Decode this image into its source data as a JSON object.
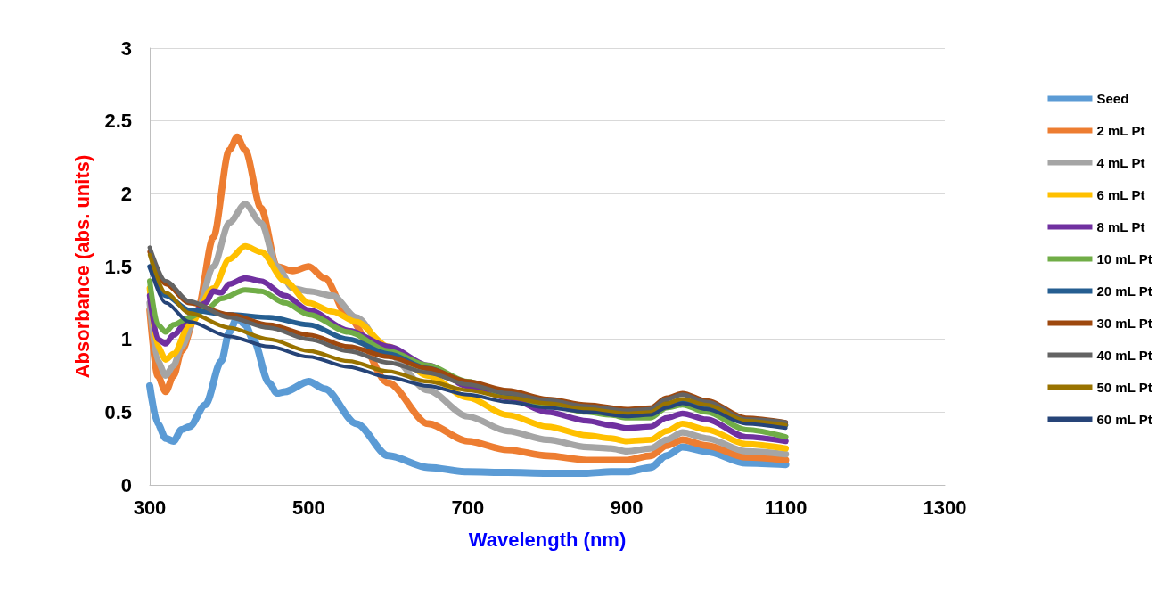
{
  "chart_data": {
    "type": "line",
    "xlabel": "Wavelength (nm)",
    "ylabel": "Absorbance (abs. units)",
    "xlim": [
      300,
      1300
    ],
    "xticks": [
      300,
      500,
      700,
      900,
      1100,
      1300
    ],
    "ylim": [
      0,
      3
    ],
    "yticks": [
      0,
      0.5,
      1,
      1.5,
      2,
      2.5,
      3
    ],
    "grid": "y",
    "legend": "right",
    "marker": "none",
    "line_style": "solid",
    "series": [
      {
        "name": "Seed",
        "color": "#5b9bd5",
        "x": [
          300,
          310,
          320,
          330,
          340,
          350,
          370,
          390,
          400,
          410,
          420,
          430,
          450,
          460,
          470,
          500,
          520,
          560,
          600,
          650,
          700,
          750,
          800,
          850,
          880,
          900,
          930,
          950,
          970,
          1000,
          1050,
          1100
        ],
        "values": [
          0.68,
          0.42,
          0.32,
          0.3,
          0.38,
          0.4,
          0.55,
          0.85,
          1.05,
          1.15,
          1.1,
          1.0,
          0.7,
          0.63,
          0.64,
          0.71,
          0.66,
          0.42,
          0.2,
          0.12,
          0.09,
          0.085,
          0.08,
          0.08,
          0.09,
          0.09,
          0.12,
          0.2,
          0.26,
          0.23,
          0.15,
          0.14
        ]
      },
      {
        "name": "2 mL Pt",
        "color": "#ed7d31",
        "x": [
          300,
          310,
          320,
          330,
          340,
          360,
          380,
          400,
          410,
          420,
          440,
          460,
          480,
          500,
          520,
          550,
          600,
          650,
          700,
          750,
          800,
          850,
          880,
          900,
          930,
          950,
          970,
          1000,
          1050,
          1100
        ],
        "values": [
          1.2,
          0.75,
          0.64,
          0.75,
          0.92,
          1.2,
          1.7,
          2.3,
          2.39,
          2.3,
          1.9,
          1.5,
          1.47,
          1.5,
          1.42,
          1.15,
          0.7,
          0.42,
          0.3,
          0.24,
          0.2,
          0.17,
          0.17,
          0.17,
          0.2,
          0.27,
          0.31,
          0.27,
          0.19,
          0.17
        ]
      },
      {
        "name": "4 mL Pt",
        "color": "#a5a5a5",
        "x": [
          300,
          310,
          320,
          330,
          340,
          360,
          380,
          400,
          420,
          440,
          460,
          480,
          500,
          530,
          560,
          600,
          650,
          700,
          750,
          800,
          850,
          880,
          900,
          930,
          950,
          970,
          1000,
          1050,
          1100
        ],
        "values": [
          1.25,
          0.85,
          0.75,
          0.82,
          0.95,
          1.2,
          1.5,
          1.8,
          1.93,
          1.8,
          1.5,
          1.35,
          1.33,
          1.3,
          1.15,
          0.9,
          0.65,
          0.47,
          0.37,
          0.31,
          0.26,
          0.25,
          0.23,
          0.25,
          0.31,
          0.36,
          0.32,
          0.23,
          0.21
        ]
      },
      {
        "name": "6 mL Pt",
        "color": "#ffc000",
        "x": [
          300,
          310,
          320,
          330,
          350,
          380,
          400,
          420,
          440,
          470,
          500,
          530,
          560,
          600,
          650,
          700,
          750,
          800,
          850,
          880,
          900,
          930,
          950,
          970,
          1000,
          1050,
          1100
        ],
        "values": [
          1.35,
          0.95,
          0.86,
          0.9,
          1.1,
          1.35,
          1.55,
          1.64,
          1.6,
          1.4,
          1.25,
          1.19,
          1.12,
          0.95,
          0.75,
          0.6,
          0.48,
          0.4,
          0.34,
          0.32,
          0.3,
          0.31,
          0.37,
          0.42,
          0.38,
          0.28,
          0.25
        ]
      },
      {
        "name": "8 mL Pt",
        "color": "#7030a0",
        "x": [
          300,
          310,
          320,
          330,
          350,
          370,
          380,
          390,
          400,
          420,
          440,
          470,
          500,
          550,
          600,
          650,
          700,
          750,
          800,
          850,
          880,
          900,
          930,
          950,
          970,
          1000,
          1050,
          1100
        ],
        "values": [
          1.3,
          1.0,
          0.97,
          1.03,
          1.15,
          1.25,
          1.33,
          1.32,
          1.38,
          1.42,
          1.4,
          1.3,
          1.2,
          1.06,
          0.95,
          0.82,
          0.68,
          0.6,
          0.5,
          0.44,
          0.41,
          0.39,
          0.4,
          0.46,
          0.49,
          0.45,
          0.33,
          0.3
        ]
      },
      {
        "name": "10 mL Pt",
        "color": "#70ad47",
        "x": [
          300,
          310,
          320,
          330,
          350,
          370,
          390,
          420,
          440,
          470,
          500,
          550,
          600,
          650,
          700,
          750,
          800,
          850,
          880,
          900,
          930,
          950,
          970,
          1000,
          1050,
          1100
        ],
        "values": [
          1.4,
          1.1,
          1.05,
          1.1,
          1.15,
          1.2,
          1.28,
          1.34,
          1.33,
          1.25,
          1.17,
          1.05,
          0.92,
          0.82,
          0.71,
          0.62,
          0.55,
          0.5,
          0.48,
          0.46,
          0.46,
          0.53,
          0.55,
          0.5,
          0.38,
          0.33
        ]
      },
      {
        "name": "20 mL Pt",
        "color": "#255e91",
        "x": [
          300,
          320,
          350,
          400,
          450,
          500,
          550,
          600,
          650,
          700,
          750,
          800,
          850,
          900,
          930,
          950,
          970,
          1000,
          1050,
          1100
        ],
        "values": [
          1.5,
          1.3,
          1.2,
          1.17,
          1.15,
          1.1,
          1.0,
          0.9,
          0.8,
          0.7,
          0.63,
          0.57,
          0.52,
          0.5,
          0.5,
          0.56,
          0.58,
          0.54,
          0.44,
          0.41
        ]
      },
      {
        "name": "30 mL Pt",
        "color": "#9e480e",
        "x": [
          300,
          320,
          350,
          400,
          450,
          500,
          550,
          600,
          650,
          700,
          750,
          800,
          850,
          900,
          930,
          950,
          970,
          1000,
          1050,
          1100
        ],
        "values": [
          1.6,
          1.38,
          1.25,
          1.17,
          1.1,
          1.03,
          0.95,
          0.88,
          0.8,
          0.71,
          0.65,
          0.59,
          0.55,
          0.52,
          0.53,
          0.6,
          0.63,
          0.58,
          0.46,
          0.43
        ]
      },
      {
        "name": "40 mL Pt",
        "color": "#636363",
        "x": [
          300,
          320,
          350,
          400,
          450,
          500,
          550,
          600,
          650,
          700,
          750,
          800,
          850,
          900,
          930,
          950,
          970,
          1000,
          1050,
          1100
        ],
        "values": [
          1.63,
          1.4,
          1.26,
          1.15,
          1.08,
          1.0,
          0.92,
          0.84,
          0.77,
          0.69,
          0.63,
          0.58,
          0.54,
          0.51,
          0.52,
          0.59,
          0.62,
          0.57,
          0.45,
          0.43
        ]
      },
      {
        "name": "50 mL Pt",
        "color": "#997300",
        "x": [
          300,
          320,
          350,
          400,
          450,
          500,
          550,
          600,
          650,
          700,
          750,
          800,
          850,
          900,
          930,
          950,
          970,
          1000,
          1050,
          1100
        ],
        "values": [
          1.58,
          1.32,
          1.18,
          1.08,
          1.0,
          0.92,
          0.85,
          0.78,
          0.71,
          0.65,
          0.6,
          0.56,
          0.52,
          0.49,
          0.5,
          0.56,
          0.59,
          0.55,
          0.44,
          0.41
        ]
      },
      {
        "name": "60 mL Pt",
        "color": "#264478",
        "x": [
          300,
          320,
          350,
          400,
          450,
          500,
          550,
          600,
          650,
          700,
          750,
          800,
          850,
          900,
          930,
          950,
          970,
          1000,
          1050,
          1100
        ],
        "values": [
          1.5,
          1.25,
          1.12,
          1.02,
          0.95,
          0.88,
          0.81,
          0.74,
          0.68,
          0.62,
          0.57,
          0.53,
          0.5,
          0.47,
          0.48,
          0.53,
          0.56,
          0.52,
          0.42,
          0.39
        ]
      }
    ]
  }
}
